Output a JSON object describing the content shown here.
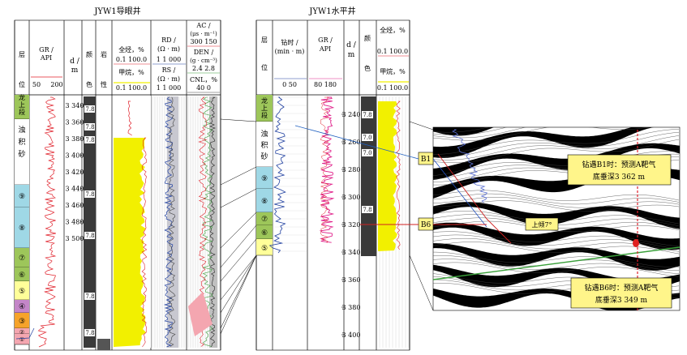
{
  "left_panel": {
    "title": "JYW1导眼井",
    "headers": {
      "layer": [
        "层",
        "位"
      ],
      "gr": [
        "GR /",
        "API"
      ],
      "gr_scale": [
        "50",
        "200"
      ],
      "depth": [
        "d /",
        "m"
      ],
      "color": [
        "颜",
        "色"
      ],
      "lith": [
        "岩",
        "性"
      ],
      "full_hc": [
        "全烃，%",
        "0.1 100.0"
      ],
      "methane": [
        "甲烷，%",
        "0.1 100.0"
      ],
      "rd": [
        "RD /",
        "(Ω · m)",
        "1  1 000"
      ],
      "rs": [
        "RS /",
        "(Ω · m)",
        "1  1 000"
      ],
      "ac": [
        "AC /",
        "(μs · m⁻¹)",
        "300   150"
      ],
      "den": [
        "DEN /",
        "(g · cm⁻³)",
        "2.4     2.8"
      ],
      "cnl": [
        "CNL，%",
        "40        0"
      ]
    },
    "layers": [
      "龙上段",
      "浊积砂",
      "⑨",
      "⑧",
      "⑦",
      "⑥",
      "⑤",
      "④",
      "③",
      "②",
      "①"
    ],
    "depth_ticks": [
      "3 340",
      "3 360",
      "3 380",
      "3 400",
      "3 420",
      "3 440",
      "3 460",
      "3 480",
      "3 500"
    ],
    "color_labels": [
      "7.8",
      "7.8",
      "7.8",
      "7.8",
      "7.8",
      "7.8",
      "7.8"
    ]
  },
  "mid_panel": {
    "title": "JYW1水平井",
    "headers": {
      "layer": [
        "层",
        "位"
      ],
      "drill_time": [
        "钻时 /",
        "(min · m)",
        "0      50"
      ],
      "gr": [
        "GR /",
        "API",
        "80   180"
      ],
      "depth": [
        "d /",
        "m"
      ],
      "color": [
        "颜",
        "色"
      ],
      "full_hc": [
        "全烃，%",
        "0.1 100.0"
      ],
      "methane": [
        "甲烷，%",
        "0.1 100.0"
      ]
    },
    "layers": [
      "龙上段",
      "浊积砂",
      "⑨",
      "⑧",
      "⑦",
      "⑥",
      "⑤"
    ],
    "depth_ticks": [
      "3 240",
      "3 260",
      "3 280",
      "3 300",
      "3 320",
      "3 340",
      "3 360",
      "3 380",
      "3 400"
    ],
    "color_labels": [
      "7.8",
      "7.0",
      "7.0",
      "7.8"
    ]
  },
  "seismic": {
    "b1_label": "B1",
    "b6_label": "B6",
    "dip_label": "上倾7°",
    "b1_note": [
      "钻遇B1时：预测A靶气",
      "底垂深3 362 m"
    ],
    "b6_note": [
      "钻遇B6时：预测A靶气",
      "底垂深3 349 m"
    ]
  },
  "colors": {
    "layer_green": "#9dc65a",
    "layer_blue": "#9fd8e6",
    "layer_yellow": "#ffff99",
    "layer_purple": "#c486c8",
    "layer_orange": "#f6a32a",
    "layer_pink": "#f4a6b0",
    "fill_yellow": "#f2f000",
    "curve_red": "#e0202a",
    "curve_blue": "#2040a0",
    "curve_green": "#3fa03f",
    "curve_pink": "#e0208a",
    "label_box": "#fff58a"
  }
}
